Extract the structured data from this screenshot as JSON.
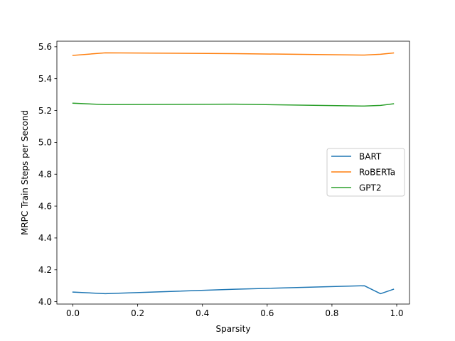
{
  "chart_data": {
    "type": "line",
    "title": "",
    "xlabel": "Sparsity",
    "ylabel": "MRPC Train Steps per Second",
    "xlim": [
      -0.0495,
      1.0395
    ],
    "ylim": [
      3.985,
      5.635
    ],
    "xticks": [
      0.0,
      0.2,
      0.4,
      0.6,
      0.8,
      1.0
    ],
    "xtick_labels": [
      "0.0",
      "0.2",
      "0.4",
      "0.6",
      "0.8",
      "1.0"
    ],
    "yticks": [
      4.0,
      4.2,
      4.4,
      4.6,
      4.8,
      5.0,
      5.2,
      5.4,
      5.6
    ],
    "ytick_labels": [
      "4.0",
      "4.2",
      "4.4",
      "4.6",
      "4.8",
      "5.0",
      "5.2",
      "5.4",
      "5.6"
    ],
    "grid": false,
    "legend_position": "center-right",
    "series": [
      {
        "name": "BART",
        "color": "#1f77b4",
        "x": [
          0.0,
          0.1,
          0.5,
          0.9,
          0.95,
          0.99
        ],
        "y": [
          4.06,
          4.05,
          4.078,
          4.1,
          4.05,
          4.078
        ]
      },
      {
        "name": "RoBERTa",
        "color": "#ff7f0e",
        "x": [
          0.0,
          0.1,
          0.5,
          0.9,
          0.95,
          0.99
        ],
        "y": [
          5.546,
          5.562,
          5.557,
          5.548,
          5.553,
          5.561
        ]
      },
      {
        "name": "GPT2",
        "color": "#2ca02c",
        "x": [
          0.0,
          0.1,
          0.5,
          0.9,
          0.95,
          0.99
        ],
        "y": [
          5.246,
          5.237,
          5.24,
          5.228,
          5.232,
          5.242
        ]
      }
    ]
  }
}
